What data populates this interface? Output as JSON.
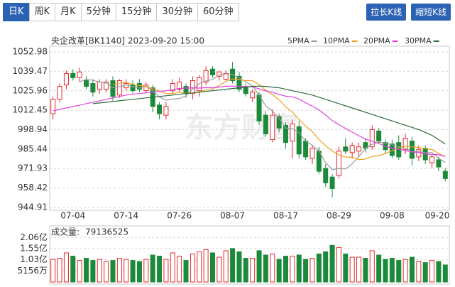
{
  "tabs": [
    "日K",
    "周K",
    "月K",
    "5分钟",
    "15分钟",
    "30分钟",
    "60分钟"
  ],
  "buttons": [
    "拉长K线",
    "缩短K线"
  ],
  "watermark": "东方财富",
  "chart_data": {
    "type": "candlestick",
    "title": "央企改革[BK1140] 2023-09-20 15:00",
    "categories": [
      null,
      null,
      null,
      "07-04",
      null,
      null,
      null,
      null,
      null,
      null,
      null,
      "07-14",
      null,
      null,
      null,
      null,
      null,
      null,
      null,
      "07-26",
      null,
      null,
      null,
      null,
      null,
      null,
      null,
      "08-07",
      null,
      null,
      null,
      null,
      null,
      null,
      null,
      "08-17",
      null,
      null,
      null,
      null,
      null,
      null,
      null,
      "08-29",
      null,
      null,
      null,
      null,
      null,
      null,
      null,
      "09-08",
      null,
      null,
      null,
      null,
      null,
      null,
      null,
      "09-20"
    ],
    "open": [
      1010,
      1020,
      1030,
      1038,
      1035,
      1033,
      1031,
      1027,
      1027,
      1033,
      1023,
      1028,
      1030,
      1031,
      1026,
      1028,
      1016,
      1009,
      1026,
      1027,
      1029,
      1024,
      1026,
      1032,
      1041,
      1036,
      1034,
      1041,
      1036,
      1028,
      1021,
      1023,
      1009,
      992,
      1008,
      1002,
      991,
      1001,
      991,
      979,
      984,
      972,
      966,
      967,
      987,
      983,
      984,
      990,
      987,
      998,
      990,
      989,
      990,
      985,
      991,
      980,
      986,
      976,
      978,
      970
    ],
    "high": [
      1022,
      1031,
      1040,
      1041,
      1042,
      1036,
      1034,
      1034,
      1034,
      1036,
      1034,
      1034,
      1033,
      1034,
      1032,
      1030,
      1018,
      1018,
      1034,
      1035,
      1031,
      1036,
      1037,
      1043,
      1043,
      1040,
      1040,
      1046,
      1039,
      1031,
      1027,
      1025,
      1012,
      1013,
      1010,
      1004,
      1006,
      1005,
      993,
      988,
      987,
      975,
      968,
      987,
      993,
      990,
      990,
      993,
      1002,
      1000,
      992,
      992,
      995,
      996,
      994,
      988,
      988,
      982,
      980,
      972
    ],
    "low": [
      1006,
      1018,
      1027,
      1033,
      1032,
      1027,
      1022,
      1024,
      1025,
      1019,
      1021,
      1026,
      1024,
      1025,
      1024,
      1011,
      1006,
      1006,
      1024,
      1025,
      1021,
      1020,
      1022,
      1030,
      1035,
      1033,
      1033,
      1031,
      1025,
      1022,
      1018,
      1002,
      994,
      990,
      997,
      986,
      979,
      979,
      978,
      975,
      968,
      959,
      952,
      965,
      982,
      979,
      980,
      983,
      985,
      989,
      982,
      979,
      978,
      982,
      974,
      977,
      975,
      972,
      970,
      963
    ],
    "close": [
      1020,
      1029,
      1038,
      1035,
      1039,
      1029,
      1025,
      1032,
      1032,
      1022,
      1033,
      1031,
      1026,
      1027,
      1030,
      1015,
      1010,
      1015,
      1031,
      1032,
      1024,
      1033,
      1035,
      1040,
      1037,
      1039,
      1038,
      1033,
      1027,
      1024,
      1025,
      1005,
      996,
      1009,
      1000,
      990,
      1003,
      982,
      980,
      986,
      970,
      962,
      958,
      984,
      984,
      988,
      987,
      986,
      999,
      991,
      985,
      981,
      980,
      993,
      979,
      985,
      978,
      980,
      973,
      965
    ],
    "up_color": "#e8272d",
    "down_color": "#1b8a3a",
    "ma": [
      {
        "name": "5PMA",
        "color": "#9a9a9a",
        "values": [
          null,
          null,
          null,
          null,
          1032.2,
          1034,
          1033.2,
          1032,
          1031.4,
          1028,
          1028.8,
          1030,
          1028.8,
          1027.8,
          1029.4,
          1025.8,
          1021.6,
          1019.4,
          1020.2,
          1020.6,
          1022.4,
          1027,
          1031,
          1032.8,
          1033.8,
          1036.8,
          1037.8,
          1037.4,
          1034.8,
          1032.2,
          1029.4,
          1022.8,
          1015.4,
          1011.8,
          1007,
          1000,
          999.6,
          996.8,
          991,
          988.2,
          984.2,
          976,
          971.2,
          972,
          971.6,
          975.2,
          980.2,
          985.8,
          988.8,
          990.2,
          989.6,
          988.4,
          987.2,
          986,
          983.6,
          983.6,
          983,
          983,
          979,
          976.2
        ]
      },
      {
        "name": "10PMA",
        "color": "#f0a020",
        "values": [
          null,
          null,
          null,
          null,
          null,
          null,
          null,
          null,
          null,
          1030.1,
          1031.4,
          1031.6,
          1030.4,
          1029.6,
          1028.7,
          1027.3,
          1025.8,
          1024.1,
          1024,
          1025,
          1024.1,
          1024.3,
          1025.2,
          1026.5,
          1027.2,
          1029.6,
          1032.4,
          1034.2,
          1033.8,
          1033,
          1033.1,
          1030.3,
          1026.4,
          1023.3,
          1019.6,
          1014.7,
          1011.2,
          1006.1,
          1001.4,
          997.6,
          992.1,
          987.8,
          984,
          981.5,
          979.9,
          979.7,
          978.1,
          978.5,
          980.4,
          980.9,
          982.4,
          984.3,
          986.5,
          987.4,
          986.9,
          986.6,
          985.7,
          985.1,
          982.5,
          979.9
        ]
      },
      {
        "name": "20PMA",
        "color": "#e040e0",
        "values": [
          1012,
          1013,
          1014,
          1015,
          1016,
          1017,
          1018,
          1019,
          1020,
          1021,
          1022,
          1023,
          1023.5,
          1024,
          1024.5,
          1025,
          1025.5,
          1026,
          1026.5,
          1027.6,
          1027.8,
          1028,
          1027.8,
          1028.1,
          1028,
          1028.5,
          1029.1,
          1029.2,
          1028.9,
          1029,
          1028.6,
          1027.3,
          1025.8,
          1024.9,
          1023.4,
          1022.2,
          1021.8,
          1020.2,
          1017.6,
          1015.3,
          1012.6,
          1009.1,
          1005.2,
          1002.4,
          999.8,
          997.2,
          994.7,
          992.3,
          990.9,
          989.3,
          987.3,
          986.1,
          985.3,
          984.5,
          983.4,
          983.2,
          981.9,
          981.8,
          981.5,
          980.4
        ]
      },
      {
        "name": "30PMA",
        "color": "#2a6a3a",
        "values": [
          null,
          null,
          null,
          null,
          null,
          null,
          1017,
          1017.5,
          1018,
          1018.5,
          1019,
          1019.5,
          1020,
          1020.5,
          1021,
          1021.5,
          1022,
          1022.5,
          1023,
          1023.5,
          1024,
          1024.5,
          1025,
          1025.5,
          1026,
          1026.5,
          1027,
          1027.5,
          1028,
          1028.5,
          1029,
          1029.2,
          1029,
          1028.5,
          1028,
          1027,
          1026,
          1025,
          1024,
          1023,
          1021.5,
          1020,
          1018.5,
          1017,
          1015.5,
          1014,
          1012.5,
          1011,
          1009.5,
          1008,
          1006.5,
          1005,
          1003.5,
          1002,
          1000.5,
          999,
          997,
          995,
          992,
          989
        ]
      }
    ],
    "ylim": [
      944.91,
      1052.98
    ],
    "yticks": [
      944.91,
      958.42,
      971.93,
      985.44,
      998.94,
      1012.45,
      1025.96,
      1039.47,
      1052.98
    ],
    "grid": true,
    "volume": {
      "label": "成交量:",
      "values": [
        105000000,
        110000000,
        135000000,
        120000000,
        100000000,
        110000000,
        100000000,
        105000000,
        95000000,
        100000000,
        110000000,
        105000000,
        100000000,
        95000000,
        105000000,
        125000000,
        120000000,
        105000000,
        135000000,
        120000000,
        100000000,
        130000000,
        140000000,
        150000000,
        135000000,
        115000000,
        145000000,
        155000000,
        140000000,
        110000000,
        110000000,
        145000000,
        125000000,
        130000000,
        105000000,
        120000000,
        120000000,
        125000000,
        105000000,
        110000000,
        130000000,
        140000000,
        170000000,
        160000000,
        130000000,
        115000000,
        115000000,
        110000000,
        145000000,
        125000000,
        105000000,
        110000000,
        100000000,
        105000000,
        115000000,
        95000000,
        90000000,
        100000000,
        95000000,
        79136525
      ],
      "ylim": [
        0,
        250000000
      ],
      "yticks": [
        {
          "value": 51560000,
          "label": "5156万"
        },
        {
          "value": 103000000,
          "label": "1.03亿"
        },
        {
          "value": 155000000,
          "label": "1.55亿"
        },
        {
          "value": 206000000,
          "label": "2.06亿"
        }
      ]
    }
  }
}
